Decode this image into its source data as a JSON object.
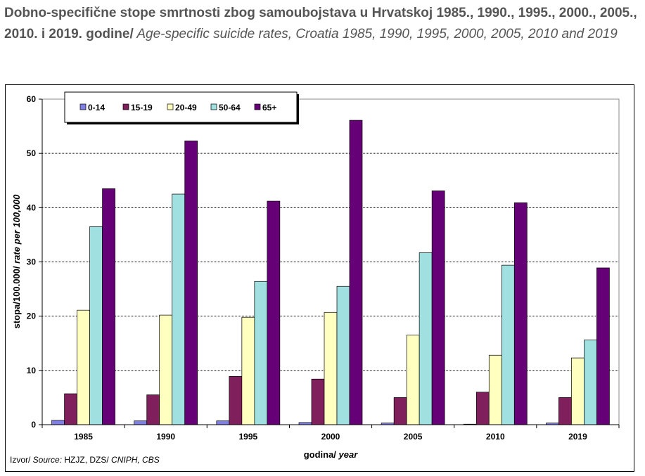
{
  "title_bold": "Dobno-specifične stope smrtnosti zbog samoubojstava u Hrvatskoj 1985., 1990., 1995., 2000., 2005., 2010. i 2019. godine/",
  "title_italic": " Age-specific suicide rates, Croatia 1985, 1990, 1995, 2000, 2005, 2010 and 2019",
  "source_prefix": "Izvor/ ",
  "source_italic": "Source:",
  "source_text": " HZJZ, DZS/ ",
  "source_italic2": "CNIPH, CBS",
  "chart_data": {
    "type": "bar",
    "categories": [
      "1985",
      "1990",
      "1995",
      "2000",
      "2005",
      "2010",
      "2019"
    ],
    "series": [
      {
        "name": "0-14",
        "color": "#7f7fe6",
        "values": [
          0.8,
          0.7,
          0.7,
          0.4,
          0.3,
          0.1,
          0.3
        ]
      },
      {
        "name": "15-19",
        "color": "#7f1f5c",
        "values": [
          5.7,
          5.5,
          8.9,
          8.4,
          5.0,
          6.0,
          5.0
        ]
      },
      {
        "name": "20-49",
        "color": "#ffffc0",
        "values": [
          21.1,
          20.2,
          19.8,
          20.7,
          16.5,
          12.8,
          12.3
        ]
      },
      {
        "name": "50-64",
        "color": "#a0e0e0",
        "values": [
          36.5,
          42.5,
          26.4,
          25.5,
          31.7,
          29.4,
          15.6
        ]
      },
      {
        "name": "65+",
        "color": "#660077",
        "values": [
          43.5,
          52.3,
          41.2,
          56.1,
          43.1,
          40.9,
          28.9
        ]
      }
    ],
    "ylim": [
      0,
      60
    ],
    "yticks": [
      "0",
      "10",
      "20",
      "30",
      "40",
      "50",
      "60"
    ],
    "xlabel": "godina/",
    "xlabel_italic": " year",
    "ylabel": "stopa/100.000/",
    "ylabel_italic": " rate per 100,000",
    "grid": true,
    "legend_position": "top-left"
  }
}
